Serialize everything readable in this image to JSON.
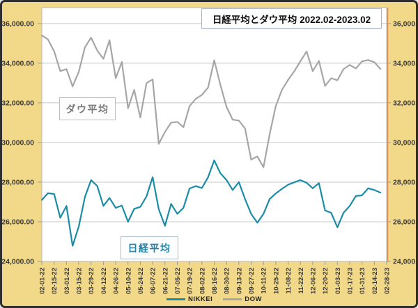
{
  "colors": {
    "chart_background": "#f2d98a",
    "plot_background": "#ffffff",
    "gridline": "#c8c8c8",
    "plot_border": "#b8b8b8",
    "plot_border_right_accent": "#d98a4a",
    "axis_text": "#3a3a3a",
    "frame_border": "#2f2f2f",
    "nikkei_line": "#1b8ca8",
    "dow_line": "#a6a6a6"
  },
  "chart_data": {
    "type": "line",
    "title": "日経平均とダウ平均 2022.02-2023.02",
    "x_axis": {
      "tick_labels": [
        "02-01-22",
        "02-15-22",
        "03-01-22",
        "03-15-22",
        "03-29-22",
        "04-12-22",
        "04-26-22",
        "05-10-22",
        "05-24-22",
        "06-07-22",
        "06-21-22",
        "07-05-22",
        "07-19-22",
        "08-02-22",
        "08-16-22",
        "08-30-22",
        "09-13-22",
        "09-27-22",
        "10-11-22",
        "10-25-22",
        "11-08-22",
        "11-22-22",
        "12-06-22",
        "12-20-22",
        "01-03-23",
        "01-17-23",
        "01-31-23",
        "02-14-23",
        "02-28-23"
      ],
      "tick_interval_days": 14,
      "span_days": 392
    },
    "y_axis": {
      "tick_values": [
        36000,
        34000,
        32000,
        30000,
        28000,
        26000,
        24000
      ],
      "tick_labels_left": [
        "36,000.00",
        "34,000.00",
        "32,000.00",
        "30,000.00",
        "28,000.00",
        "26,000.00",
        "24,000.00"
      ],
      "tick_labels_right": [
        "36,000.00",
        "34,000.00",
        "32,000.00",
        "30,000.00",
        "28,000.00",
        "26,000.00",
        "24,000.00"
      ],
      "ylim": [
        24000,
        36800
      ],
      "grid": true
    },
    "sample_interval_days": 7,
    "series": [
      {
        "name": "NIKKEI",
        "color": "#1b8ca8",
        "values": [
          27100,
          27440,
          27400,
          26200,
          26800,
          24790,
          25750,
          27250,
          28100,
          27800,
          26800,
          27200,
          26700,
          26820,
          26000,
          26650,
          26750,
          27280,
          28250,
          26630,
          25800,
          26900,
          26400,
          26700,
          27680,
          27800,
          27700,
          28250,
          29100,
          28450,
          28100,
          27600,
          28000,
          27150,
          26400,
          25950,
          26400,
          27150,
          27430,
          27660,
          27870,
          27990,
          28100,
          27970,
          27690,
          27950,
          26570,
          26450,
          25720,
          26450,
          26800,
          27300,
          27330,
          27690,
          27600,
          27470
        ]
      },
      {
        "name": "DOW",
        "color": "#a6a6a6",
        "values": [
          35400,
          35200,
          34600,
          33600,
          33700,
          32830,
          33550,
          34800,
          35290,
          34640,
          34220,
          35160,
          33240,
          34060,
          31730,
          32650,
          31260,
          32990,
          33180,
          29930,
          30530,
          31000,
          31040,
          30770,
          31830,
          32200,
          32400,
          32770,
          34150,
          32910,
          31790,
          31150,
          31100,
          30710,
          29135,
          29300,
          28750,
          30420,
          31840,
          32650,
          33160,
          33590,
          34100,
          34590,
          33600,
          34110,
          32850,
          33240,
          33140,
          33700,
          33910,
          33730,
          34090,
          34160,
          34050,
          33700
        ]
      }
    ],
    "annotations": [
      {
        "label": "ダウ平均",
        "text_color": "#7a7a7a"
      },
      {
        "label": "日経平均",
        "text_color": "#2383a5"
      }
    ],
    "legend": {
      "position": "bottom",
      "entries": [
        "NIKKEI",
        "DOW"
      ]
    }
  }
}
